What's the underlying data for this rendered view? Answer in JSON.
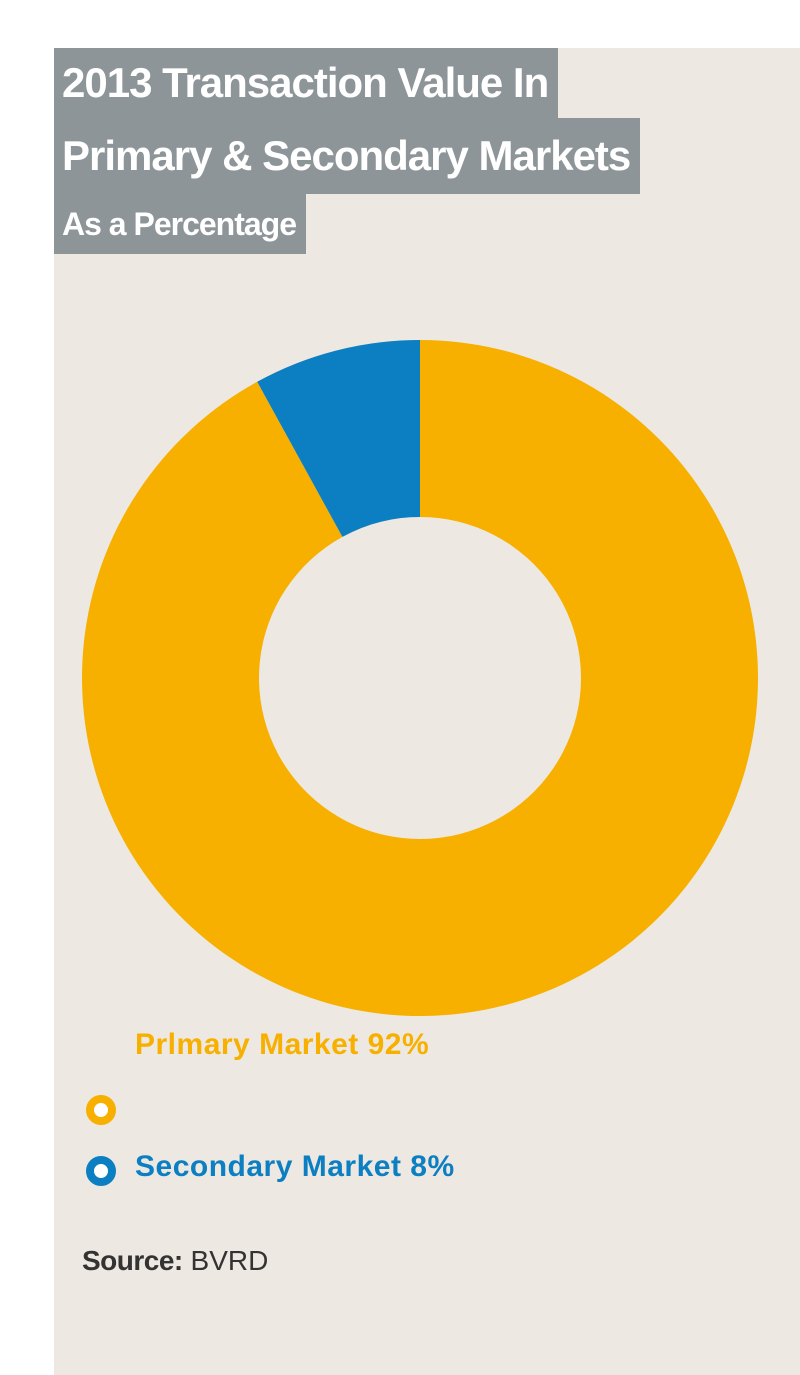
{
  "chart_data": {
    "type": "pie",
    "donut": true,
    "title_lines": [
      "2013 Transaction Value In",
      "Primary & Secondary Markets"
    ],
    "subtitle": "As a Percentage",
    "slices": [
      {
        "label": "Primary Market 92%",
        "display_label": "Prlmary Market 92%",
        "value": 92,
        "color": "#f7b000"
      },
      {
        "label": "Secondary Market 8%",
        "display_label": "Secondary Market 8%",
        "value": 8,
        "color": "#0b7fc2"
      }
    ]
  },
  "source": {
    "label": "Source:",
    "value": "BVRD"
  },
  "colors": {
    "panel_background": "#ede8e1",
    "title_background": "#8e9599",
    "title_text": "#ffffff"
  }
}
